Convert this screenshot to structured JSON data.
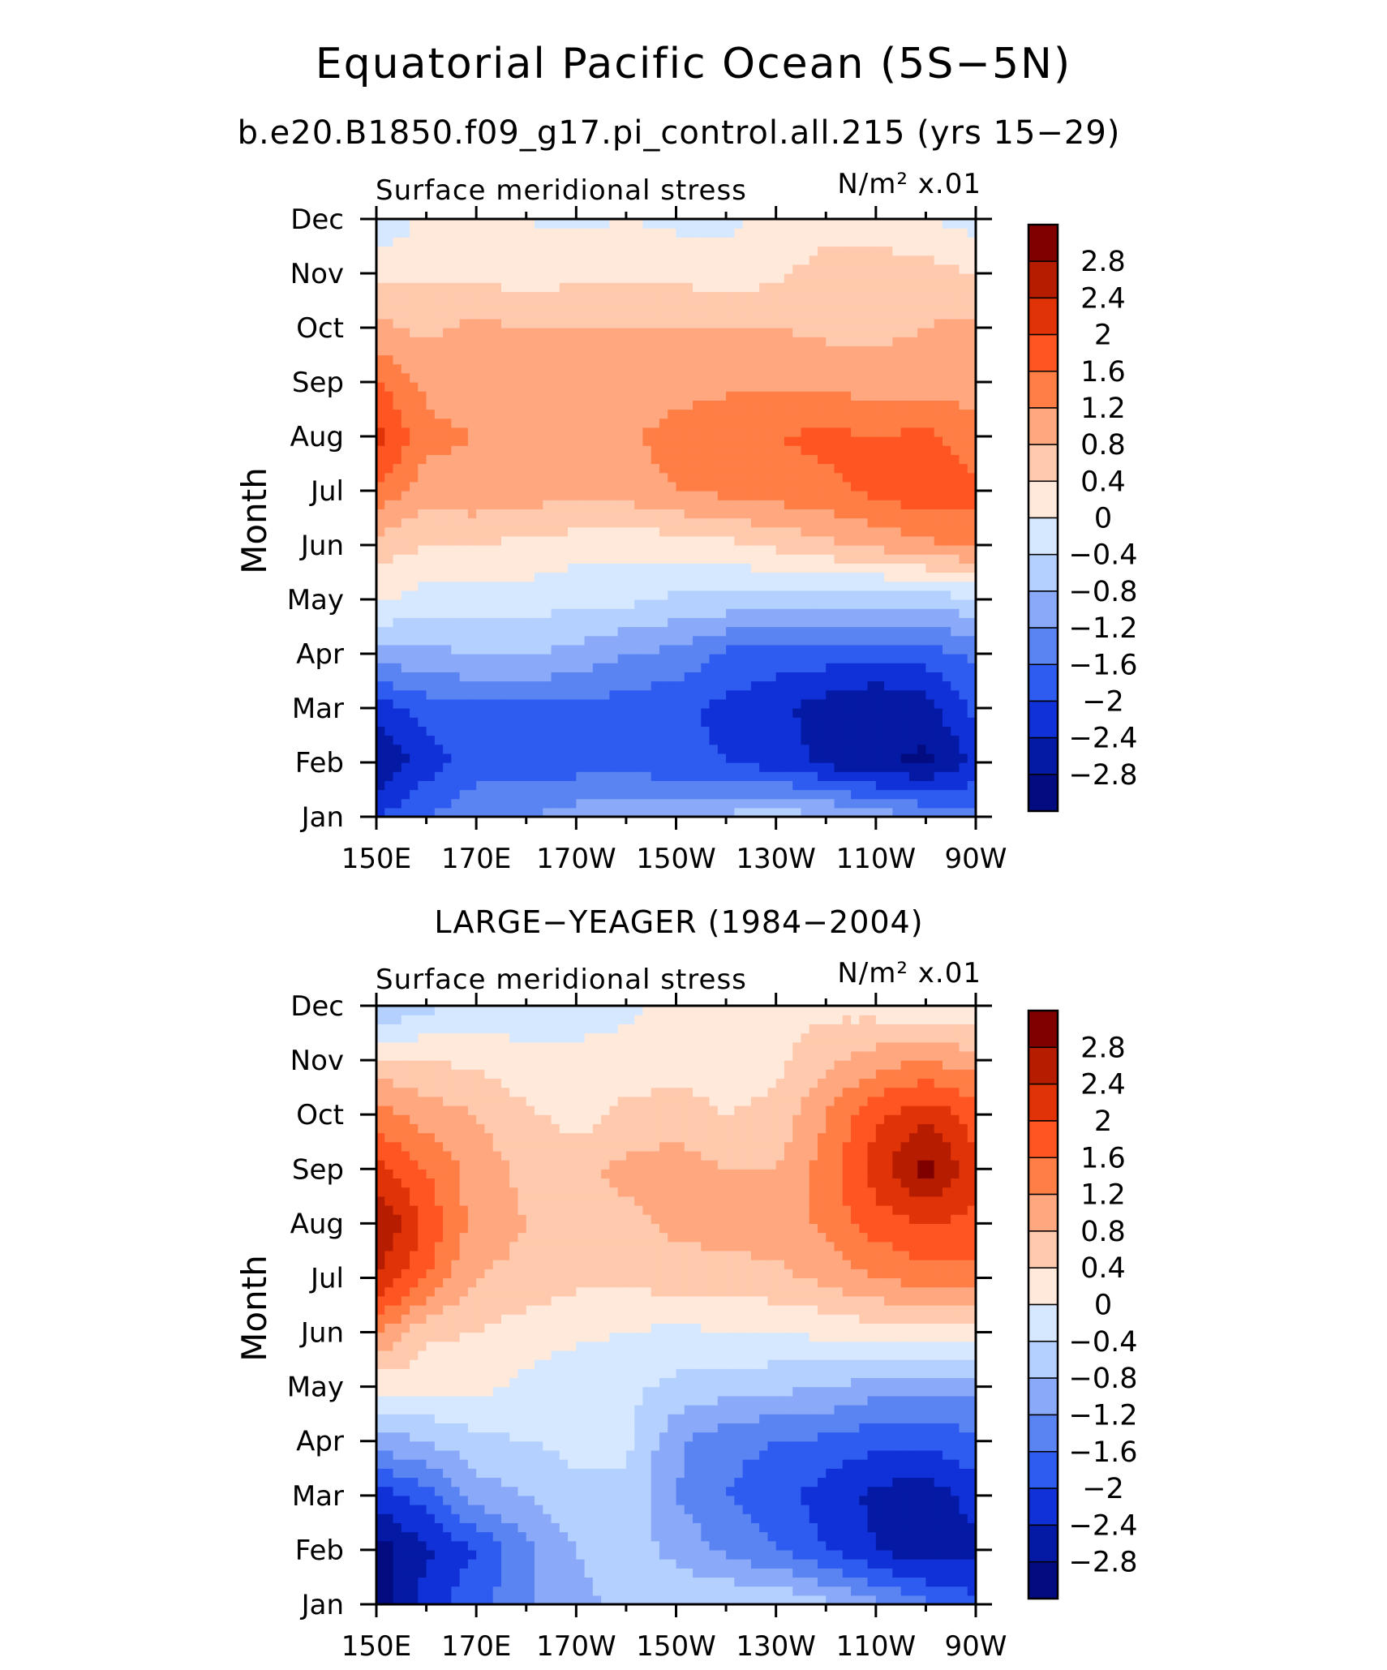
{
  "figure": {
    "title": "Equatorial Pacific Ocean (5S−5N)",
    "subtitle": "b.e20.B1850.f09_g17.pi_control.all.215 (yrs 15−29)"
  },
  "panels": [
    {
      "title": "",
      "left_label": "Surface meridional stress",
      "right_label": "N/m² x.01"
    },
    {
      "title": "LARGE−YEAGER (1984−2004)",
      "left_label": "Surface meridional stress",
      "right_label": "N/m² x.01"
    }
  ],
  "axes": {
    "ylabel": "Month",
    "xticks": [
      "150E",
      "170E",
      "170W",
      "150W",
      "130W",
      "110W",
      "90W"
    ],
    "yticks": [
      "Jan",
      "Feb",
      "Mar",
      "Apr",
      "May",
      "Jun",
      "Jul",
      "Aug",
      "Sep",
      "Oct",
      "Nov",
      "Dec"
    ]
  },
  "colorbar": {
    "labels": [
      "2.8",
      "2.4",
      "2",
      "1.6",
      "1.2",
      "0.8",
      "0.4",
      "0",
      "−0.4",
      "−0.8",
      "−1.2",
      "−1.6",
      "−2",
      "−2.4",
      "−2.8"
    ],
    "colors": [
      "#800000",
      "#b61c00",
      "#e03308",
      "#ff5522",
      "#ff7e45",
      "#ffa77f",
      "#ffc9ad",
      "#ffe9da",
      "#d6e8ff",
      "#b4d0ff",
      "#8aaaf9",
      "#5a84f2",
      "#2f5cf0",
      "#1030d8",
      "#0419a4",
      "#020b80"
    ]
  },
  "chart_data": [
    {
      "type": "heatmap",
      "title": "Surface meridional stress",
      "units": "N/m² x.01",
      "x": [
        150,
        160,
        170,
        180,
        190,
        200,
        210,
        220,
        230,
        240,
        250,
        260,
        270
      ],
      "x_ticks": [
        "150E",
        "170E",
        "170W",
        "150W",
        "130W",
        "110W",
        "90W"
      ],
      "y": [
        "Jan",
        "Feb",
        "Mar",
        "Apr",
        "May",
        "Jun",
        "Jul",
        "Aug",
        "Sep",
        "Oct",
        "Nov",
        "Dec"
      ],
      "levels": [
        -2.8,
        -2.4,
        -2,
        -1.6,
        -1.2,
        -0.8,
        -0.4,
        0,
        0.4,
        0.8,
        1.2,
        1.6,
        2,
        2.4,
        2.8
      ],
      "z": [
        [
          -2.0,
          -1.6,
          -1.3,
          -1.2,
          -1.0,
          -0.9,
          -0.8,
          -0.7,
          -0.6,
          -0.7,
          -1.0,
          -1.2,
          -1.5
        ],
        [
          -2.8,
          -2.2,
          -1.8,
          -1.8,
          -1.8,
          -1.8,
          -1.9,
          -2.0,
          -2.2,
          -2.5,
          -2.7,
          -2.9,
          -2.3
        ],
        [
          -2.2,
          -1.8,
          -1.7,
          -1.7,
          -1.7,
          -1.8,
          -1.9,
          -2.1,
          -2.3,
          -2.6,
          -2.8,
          -2.6,
          -1.9
        ],
        [
          -1.0,
          -0.9,
          -0.8,
          -0.8,
          -0.9,
          -1.2,
          -1.3,
          -1.7,
          -1.8,
          -1.8,
          -1.9,
          -1.8,
          -1.5
        ],
        [
          0.1,
          -0.2,
          -0.2,
          -0.2,
          -0.3,
          -0.3,
          -0.5,
          -0.5,
          -0.6,
          -0.6,
          -0.7,
          -0.6,
          -0.5
        ],
        [
          0.6,
          0.4,
          0.4,
          0.3,
          0.2,
          0.1,
          0.2,
          0.3,
          0.5,
          0.7,
          0.9,
          1.1,
          1.3
        ],
        [
          1.5,
          1.0,
          1.1,
          1.0,
          0.9,
          1.0,
          1.2,
          1.3,
          1.4,
          1.5,
          1.7,
          1.9,
          1.7
        ],
        [
          2.2,
          1.3,
          1.2,
          1.1,
          1.0,
          1.1,
          1.4,
          1.5,
          1.6,
          1.7,
          1.6,
          1.7,
          1.4
        ],
        [
          1.6,
          1.1,
          1.0,
          0.9,
          0.9,
          0.9,
          1.0,
          1.1,
          1.1,
          1.1,
          1.0,
          1.0,
          1.0
        ],
        [
          0.9,
          0.7,
          0.9,
          0.8,
          0.8,
          0.8,
          0.8,
          0.8,
          0.8,
          0.7,
          0.7,
          0.8,
          0.9
        ],
        [
          0.3,
          0.3,
          0.3,
          0.2,
          0.3,
          0.3,
          0.3,
          0.2,
          0.3,
          0.6,
          0.6,
          0.6,
          0.4
        ],
        [
          -0.4,
          0.1,
          0.1,
          0.0,
          -0.1,
          0.0,
          -0.1,
          -0.1,
          0.1,
          0.2,
          0.2,
          0.0,
          -0.2
        ]
      ]
    },
    {
      "type": "heatmap",
      "title": "LARGE−YEAGER (1984−2004)",
      "units": "N/m² x.01",
      "x": [
        150,
        160,
        170,
        180,
        190,
        200,
        210,
        220,
        230,
        240,
        250,
        260,
        270
      ],
      "x_ticks": [
        "150E",
        "170E",
        "170W",
        "150W",
        "130W",
        "110W",
        "90W"
      ],
      "y": [
        "Jan",
        "Feb",
        "Mar",
        "Apr",
        "May",
        "Jun",
        "Jul",
        "Aug",
        "Sep",
        "Oct",
        "Nov",
        "Dec"
      ],
      "levels": [
        -2.8,
        -2.4,
        -2,
        -1.6,
        -1.2,
        -0.8,
        -0.4,
        0,
        0.4,
        0.8,
        1.2,
        1.6,
        2,
        2.4,
        2.8
      ],
      "z": [
        [
          -3.0,
          -2.2,
          -1.7,
          -1.3,
          -0.9,
          -0.7,
          -0.5,
          -0.4,
          -0.4,
          -0.7,
          -1.1,
          -1.5,
          -1.9
        ],
        [
          -3.0,
          -2.5,
          -2.0,
          -1.3,
          -0.8,
          -0.6,
          -0.9,
          -1.3,
          -1.6,
          -2.0,
          -2.4,
          -2.7,
          -2.5
        ],
        [
          -2.2,
          -1.8,
          -1.0,
          -0.8,
          -0.5,
          -0.5,
          -1.2,
          -1.6,
          -1.8,
          -2.2,
          -2.5,
          -2.7,
          -2.2
        ],
        [
          -1.0,
          -0.8,
          -0.5,
          -0.4,
          -0.3,
          -0.3,
          -1.1,
          -1.5,
          -1.6,
          -1.7,
          -1.9,
          -1.9,
          -1.7
        ],
        [
          0.1,
          0.1,
          0.1,
          -0.1,
          -0.3,
          -0.3,
          -0.5,
          -0.6,
          -0.7,
          -0.8,
          -1.0,
          -1.1,
          -1.1
        ],
        [
          1.3,
          0.5,
          0.4,
          0.2,
          0.1,
          0.0,
          -0.1,
          0.0,
          0.0,
          0.1,
          0.2,
          0.2,
          0.2
        ],
        [
          2.4,
          1.6,
          0.8,
          0.7,
          0.5,
          0.5,
          0.6,
          0.6,
          0.7,
          0.9,
          1.2,
          1.4,
          1.5
        ],
        [
          2.9,
          1.9,
          1.0,
          0.8,
          0.7,
          0.7,
          0.9,
          1.0,
          1.0,
          1.3,
          1.8,
          2.0,
          1.9
        ],
        [
          2.1,
          1.6,
          1.0,
          0.7,
          0.7,
          0.9,
          1.0,
          0.8,
          0.8,
          1.4,
          2.2,
          3.0,
          2.1
        ],
        [
          1.4,
          1.0,
          0.8,
          0.5,
          0.2,
          0.5,
          0.6,
          0.4,
          0.5,
          1.2,
          1.9,
          2.3,
          1.8
        ],
        [
          0.5,
          0.4,
          0.3,
          0.1,
          0.1,
          0.2,
          0.2,
          0.2,
          0.3,
          0.7,
          1.0,
          1.2,
          1.0
        ],
        [
          -0.9,
          -0.5,
          -0.3,
          -0.2,
          -0.2,
          -0.1,
          0.2,
          0.2,
          0.2,
          0.3,
          0.2,
          0.1,
          0.0
        ]
      ]
    }
  ]
}
